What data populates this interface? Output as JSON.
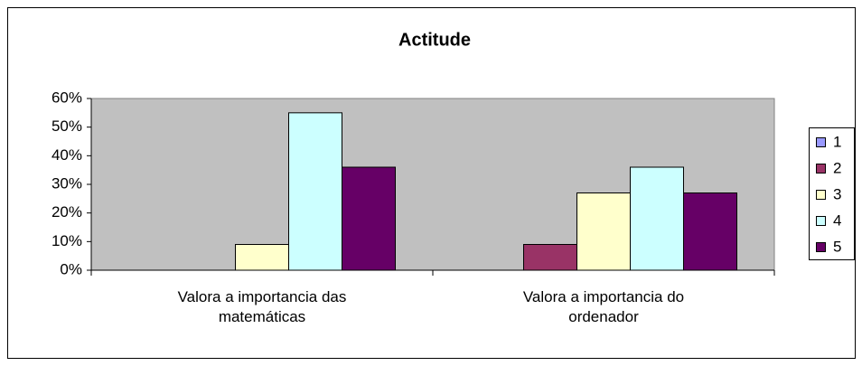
{
  "chart_data": {
    "type": "bar",
    "title": "Actitude",
    "categories": [
      "Valora a importancia das matemáticas",
      "Valora a importancia do ordenador"
    ],
    "series": [
      {
        "name": "1",
        "color": "#9999ff",
        "values": [
          0,
          0
        ]
      },
      {
        "name": "2",
        "color": "#993366",
        "values": [
          0,
          9
        ]
      },
      {
        "name": "3",
        "color": "#ffffcc",
        "values": [
          9,
          27
        ]
      },
      {
        "name": "4",
        "color": "#ccffff",
        "values": [
          55,
          36
        ]
      },
      {
        "name": "5",
        "color": "#660066",
        "values": [
          36,
          27
        ]
      }
    ],
    "ylim": [
      0,
      60
    ],
    "yticks": [
      {
        "value": 0,
        "label": "0%"
      },
      {
        "value": 10,
        "label": "10%"
      },
      {
        "value": 20,
        "label": "20%"
      },
      {
        "value": 30,
        "label": "30%"
      },
      {
        "value": 40,
        "label": "40%"
      },
      {
        "value": 50,
        "label": "50%"
      },
      {
        "value": 60,
        "label": "60%"
      }
    ],
    "grid": false,
    "legend": "right"
  }
}
